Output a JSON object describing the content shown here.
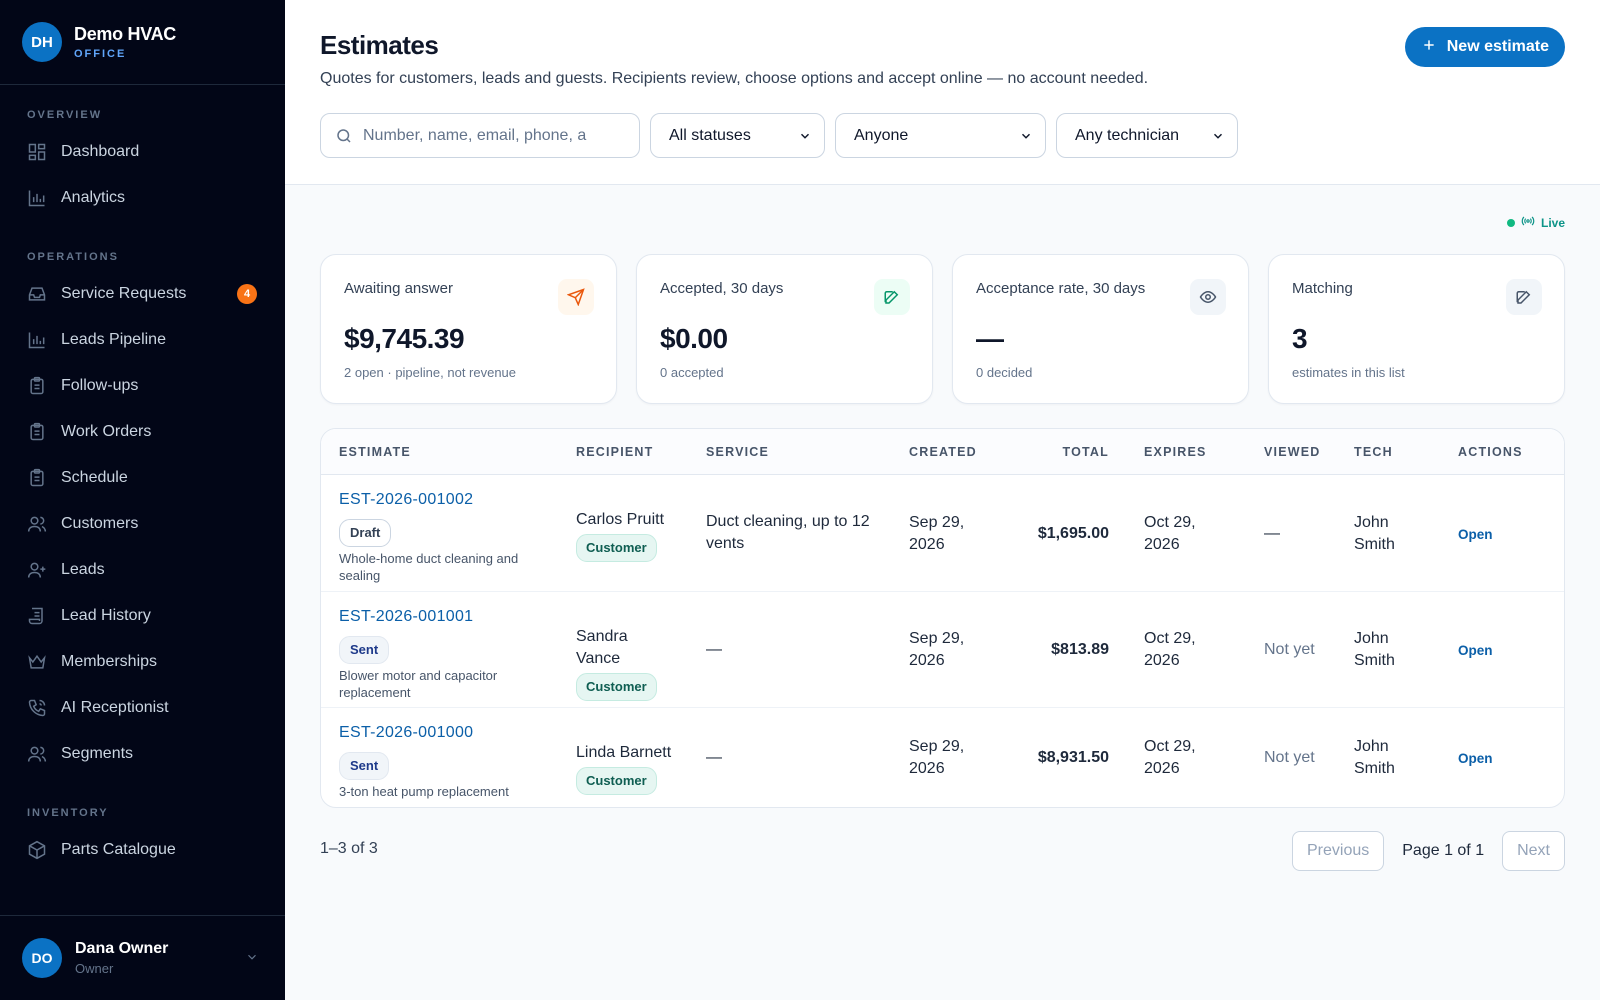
{
  "brand": {
    "initials": "DH",
    "name": "Demo HVAC",
    "sub": "OFFICE"
  },
  "sidebar": {
    "sections": [
      {
        "label": "OVERVIEW",
        "items": [
          {
            "label": "Dashboard",
            "icon": "grid-icon"
          },
          {
            "label": "Analytics",
            "icon": "bar-chart-icon"
          }
        ]
      },
      {
        "label": "OPERATIONS",
        "items": [
          {
            "label": "Service Requests",
            "icon": "inbox-icon",
            "badge": "4"
          },
          {
            "label": "Leads Pipeline",
            "icon": "bar-chart-icon"
          },
          {
            "label": "Follow-ups",
            "icon": "clipboard-icon"
          },
          {
            "label": "Work Orders",
            "icon": "clipboard-icon"
          },
          {
            "label": "Schedule",
            "icon": "clipboard-icon"
          },
          {
            "label": "Customers",
            "icon": "users-icon"
          },
          {
            "label": "Leads",
            "icon": "user-plus-icon"
          },
          {
            "label": "Lead History",
            "icon": "scroll-icon"
          },
          {
            "label": "Memberships",
            "icon": "crown-icon"
          },
          {
            "label": "AI Receptionist",
            "icon": "phone-icon"
          },
          {
            "label": "Segments",
            "icon": "users-icon"
          }
        ]
      },
      {
        "label": "INVENTORY",
        "items": [
          {
            "label": "Parts Catalogue",
            "icon": "box-icon"
          }
        ]
      }
    ]
  },
  "user": {
    "initials": "DO",
    "name": "Dana Owner",
    "role": "Owner"
  },
  "header": {
    "title": "Estimates",
    "subtitle": "Quotes for customers, leads and guests. Recipients review, choose options and accept online — no account needed.",
    "new_button": "New estimate",
    "search_placeholder": "Number, name, email, phone, a",
    "filters": [
      "All statuses",
      "Anyone",
      "Any technician"
    ]
  },
  "live_label": "Live",
  "cards": [
    {
      "label": "Awaiting answer",
      "value": "$9,745.39",
      "note": "2 open · pipeline, not revenue",
      "icon": "send-icon",
      "color": "#ea580c",
      "bg": "#fff7ed"
    },
    {
      "label": "Accepted, 30 days",
      "value": "$0.00",
      "note": "0 accepted",
      "icon": "edit-icon",
      "color": "#059669",
      "bg": "#ecfdf5"
    },
    {
      "label": "Acceptance rate, 30 days",
      "value": "—",
      "note": "0 decided",
      "icon": "eye-icon",
      "color": "#475569",
      "bg": "#f1f5f9"
    },
    {
      "label": "Matching",
      "value": "3",
      "note": "estimates in this list",
      "icon": "edit-icon",
      "color": "#475569",
      "bg": "#f1f5f9"
    }
  ],
  "table": {
    "columns": [
      "ESTIMATE",
      "RECIPIENT",
      "SERVICE",
      "CREATED",
      "TOTAL",
      "EXPIRES",
      "VIEWED",
      "TECH",
      "ACTIONS"
    ],
    "rows": [
      {
        "number": "EST-2026-001002",
        "status": "Draft",
        "desc": "Whole-home duct cleaning and sealing",
        "recipient": "Carlos Pruitt",
        "type": "Customer",
        "service": "Duct cleaning, up to 12 vents",
        "created": "Sep 29, 2026",
        "total": "$1,695.00",
        "expires": "Oct 29, 2026",
        "viewed": "—",
        "tech": "John Smith",
        "action": "Open"
      },
      {
        "number": "EST-2026-001001",
        "status": "Sent",
        "desc": "Blower motor and capacitor replacement",
        "recipient": "Sandra Vance",
        "type": "Customer",
        "service": "—",
        "created": "Sep 29, 2026",
        "total": "$813.89",
        "expires": "Oct 29, 2026",
        "viewed": "Not yet",
        "tech": "John Smith",
        "action": "Open"
      },
      {
        "number": "EST-2026-001000",
        "status": "Sent",
        "desc": "3-ton heat pump replacement",
        "recipient": "Linda Barnett",
        "type": "Customer",
        "service": "—",
        "created": "Sep 29, 2026",
        "total": "$8,931.50",
        "expires": "Oct 29, 2026",
        "viewed": "Not yet",
        "tech": "John Smith",
        "action": "Open"
      }
    ]
  },
  "footer": {
    "count": "1–3 of 3",
    "previous": "Previous",
    "page": "Page 1 of 1",
    "next": "Next"
  }
}
